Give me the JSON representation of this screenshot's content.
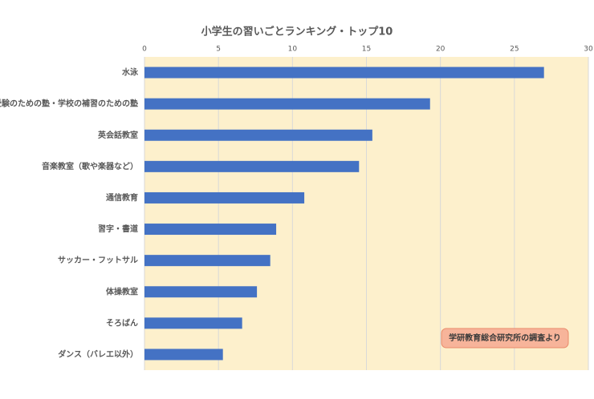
{
  "chart_data": {
    "type": "bar",
    "orientation": "horizontal",
    "title": "小学生の習いごとランキング・トップ10",
    "categories": [
      "水泳",
      "受験のための塾・学校の補習のための塾",
      "英会話教室",
      "音楽教室（歌や楽器など）",
      "通信教育",
      "習字・書道",
      "サッカー・フットサル",
      "体操教室",
      "そろばん",
      "ダンス（バレエ以外）"
    ],
    "values": [
      27.0,
      19.3,
      15.4,
      14.5,
      10.8,
      8.9,
      8.5,
      7.6,
      6.6,
      5.3
    ],
    "color": "#4472c4",
    "xlim": [
      0,
      30
    ],
    "xticks": [
      0,
      5,
      10,
      15,
      20,
      25,
      30
    ],
    "grid": true,
    "annotation": "学研教育総合研究所の調査より"
  }
}
